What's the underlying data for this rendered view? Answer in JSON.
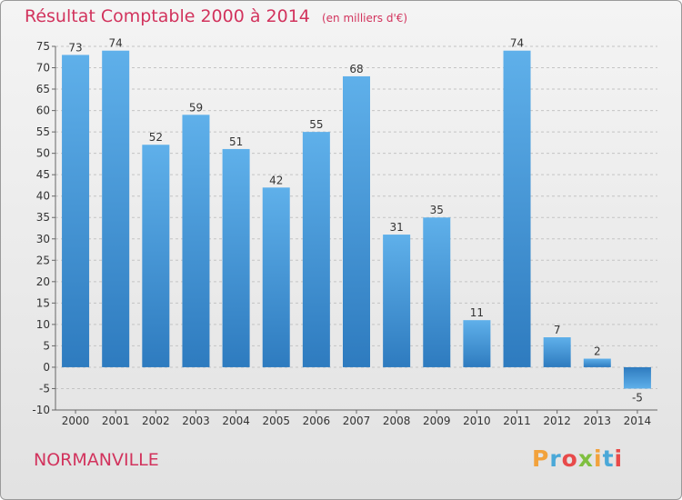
{
  "header": {
    "title": "Résultat Comptable 2000 à 2014",
    "unit": "(en milliers d'€)"
  },
  "footer": {
    "town": "NORMANVILLE",
    "logo": "Proxiti",
    "logo_colors": [
      "#f2a23c",
      "#4aa8d8",
      "#e84a4a",
      "#7fbf3f",
      "#f2a23c",
      "#4aa8d8",
      "#e84a4a"
    ]
  },
  "chart_data": {
    "type": "bar",
    "categories": [
      "2000",
      "2001",
      "2002",
      "2003",
      "2004",
      "2005",
      "2006",
      "2007",
      "2008",
      "2009",
      "2010",
      "2011",
      "2012",
      "2013",
      "2014"
    ],
    "values": [
      73,
      74,
      52,
      59,
      51,
      42,
      55,
      68,
      31,
      35,
      11,
      74,
      7,
      2,
      -5
    ],
    "ylim": [
      -10,
      75
    ],
    "yticks": [
      -10,
      -5,
      0,
      5,
      10,
      15,
      20,
      25,
      30,
      35,
      40,
      45,
      50,
      55,
      60,
      65,
      70,
      75
    ],
    "grid": "horizontal dashed",
    "bar_color": "#3d8fd0",
    "title": "Résultat Comptable 2000 à 2014",
    "xlabel": "",
    "ylabel": ""
  }
}
